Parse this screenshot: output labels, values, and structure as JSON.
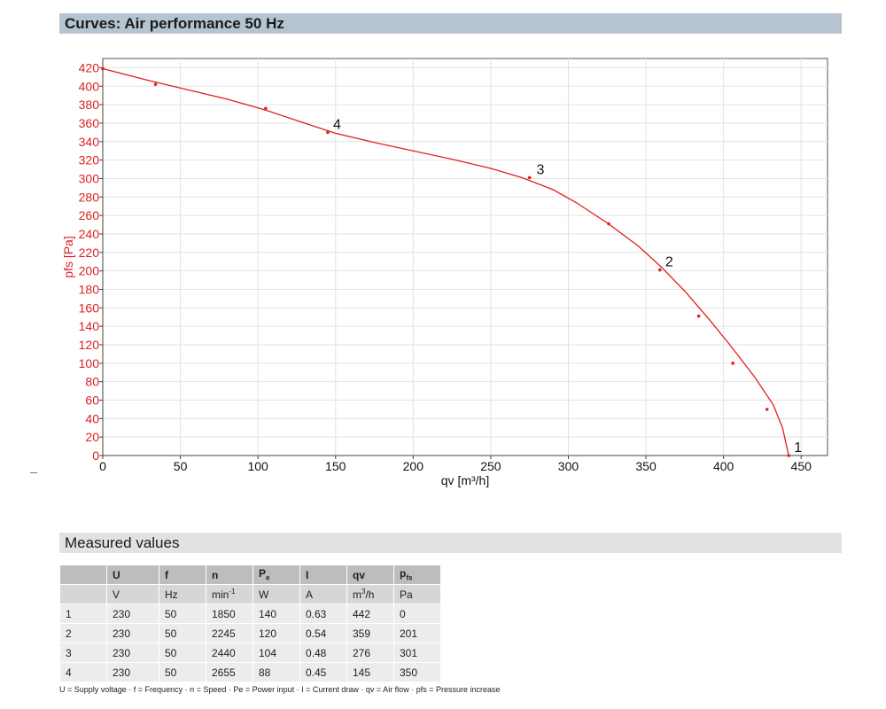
{
  "header": {
    "title": "Curves: Air performance 50 Hz"
  },
  "measured": {
    "title": "Measured values",
    "columns": [
      {
        "key": "",
        "sym": "",
        "sub": "",
        "unit": ""
      },
      {
        "key": "U",
        "sym": "U",
        "sub": "",
        "unit": "V"
      },
      {
        "key": "f",
        "sym": "f",
        "sub": "",
        "unit": "Hz"
      },
      {
        "key": "n",
        "sym": "n",
        "sub": "",
        "unit": "min",
        "unit_sup": "-1"
      },
      {
        "key": "Pe",
        "sym": "P",
        "sub": "e",
        "unit": "W"
      },
      {
        "key": "I",
        "sym": "I",
        "sub": "",
        "unit": "A"
      },
      {
        "key": "qv",
        "sym": "qv",
        "sub": "",
        "unit": "m",
        "unit_sup": "3",
        "unit_tail": "/h"
      },
      {
        "key": "pfs",
        "sym": "p",
        "sub": "fs",
        "unit": "Pa"
      }
    ],
    "rows": [
      [
        "1",
        "230",
        "50",
        "1850",
        "140",
        "0.63",
        "442",
        "0"
      ],
      [
        "2",
        "230",
        "50",
        "2245",
        "120",
        "0.54",
        "359",
        "201"
      ],
      [
        "3",
        "230",
        "50",
        "2440",
        "104",
        "0.48",
        "276",
        "301"
      ],
      [
        "4",
        "230",
        "50",
        "2655",
        "88",
        "0.45",
        "145",
        "350"
      ]
    ],
    "footnote": "U = Supply voltage · f = Frequency · n = Speed · Pe = Power input · I = Current draw · qv = Air flow · pfs = Pressure increase"
  },
  "chart_data": {
    "type": "line",
    "xlabel": "qv [m³/h]",
    "ylabel": "pfs [Pa]",
    "xlim": [
      0,
      467
    ],
    "ylim": [
      0,
      430
    ],
    "xticks": [
      0,
      50,
      100,
      150,
      200,
      250,
      300,
      350,
      400,
      450
    ],
    "yticks": [
      0,
      20,
      40,
      60,
      80,
      100,
      120,
      140,
      160,
      180,
      200,
      220,
      240,
      260,
      280,
      300,
      320,
      340,
      360,
      380,
      400,
      420
    ],
    "grid": true,
    "curve_color": "#e02020",
    "axis_label_color": "#e02020",
    "series": [
      {
        "curve": [
          [
            0,
            419
          ],
          [
            30,
            406
          ],
          [
            55,
            396
          ],
          [
            80,
            386
          ],
          [
            105,
            374
          ],
          [
            130,
            360
          ],
          [
            150,
            349
          ],
          [
            175,
            339
          ],
          [
            200,
            330
          ],
          [
            225,
            321
          ],
          [
            250,
            311
          ],
          [
            270,
            301
          ],
          [
            290,
            288
          ],
          [
            305,
            274
          ],
          [
            325,
            252
          ],
          [
            345,
            227
          ],
          [
            360,
            204
          ],
          [
            375,
            178
          ],
          [
            390,
            149
          ],
          [
            405,
            118
          ],
          [
            420,
            85
          ],
          [
            432,
            55
          ],
          [
            438,
            30
          ],
          [
            442,
            0
          ]
        ],
        "markers": [
          [
            0,
            419
          ],
          [
            34,
            402
          ],
          [
            105,
            376
          ],
          [
            145,
            350
          ],
          [
            275,
            301
          ],
          [
            326,
            251
          ],
          [
            359,
            201
          ],
          [
            384,
            151
          ],
          [
            406,
            100
          ],
          [
            428,
            50
          ],
          [
            442,
            0
          ]
        ]
      }
    ],
    "annotations": [
      {
        "label": "1",
        "x": 442,
        "y": 0
      },
      {
        "label": "2",
        "x": 359,
        "y": 201
      },
      {
        "label": "3",
        "x": 276,
        "y": 301
      },
      {
        "label": "4",
        "x": 145,
        "y": 350
      }
    ]
  }
}
